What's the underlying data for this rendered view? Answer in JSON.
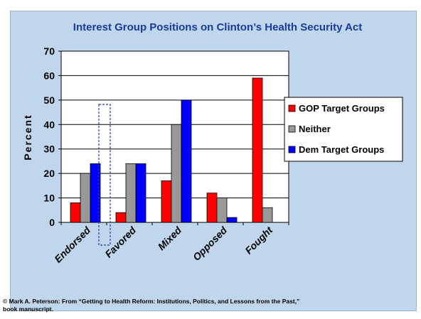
{
  "chart_data": {
    "type": "bar",
    "title": "Interest Group Positions on Clinton’s Health Security Act",
    "xlabel": "",
    "ylabel": "Percent",
    "categories": [
      "Endorsed",
      "Favored",
      "Mixed",
      "Opposed",
      "Fought"
    ],
    "series": [
      {
        "name": "GOP Target Groups",
        "values": [
          8,
          4,
          17,
          12,
          59
        ],
        "color": "#ff0000"
      },
      {
        "name": "Neither",
        "values": [
          20,
          24,
          40,
          10,
          6
        ],
        "color": "#999999"
      },
      {
        "name": "Dem Target Groups",
        "values": [
          24,
          24,
          50,
          2,
          0
        ],
        "color": "#0000ff"
      }
    ],
    "ylim": [
      0,
      70
    ],
    "yticks": [
      "0",
      "10",
      "20",
      "30",
      "40",
      "50",
      "60",
      "70"
    ],
    "grid": true,
    "legend_position": "right",
    "annotation": "dashed box highlighting the Dem Target Groups bar for Endorsed"
  },
  "footer": {
    "line1": "© Mark A. Peterson:  From “Getting to Health Reform: Institutions, Politics, and Lessons from the Past,”",
    "line2": "book manuscript."
  },
  "colors": {
    "background": "#bfd6ec",
    "plot_area": "#ffffff",
    "title": "#1a3aa0"
  }
}
